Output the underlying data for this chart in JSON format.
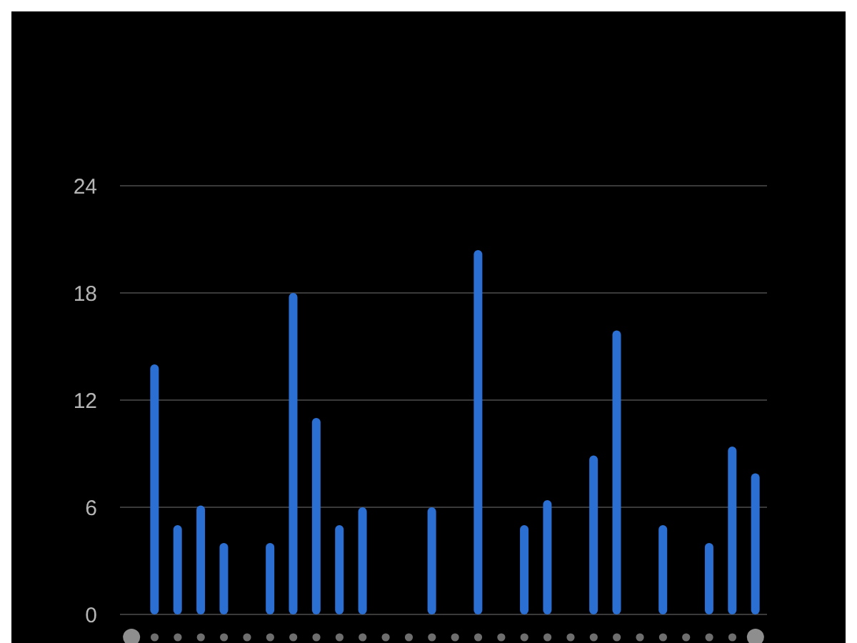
{
  "chart_data": {
    "type": "bar",
    "categories": [
      null,
      null,
      null,
      null,
      null,
      null,
      null,
      null,
      null,
      null,
      null,
      null,
      null,
      null,
      null,
      null,
      null,
      null,
      null,
      null,
      null,
      null,
      null,
      null,
      null,
      null,
      null,
      null
    ],
    "series": [
      {
        "color": "#2b6fd3",
        "values": [
          null,
          14,
          5,
          6.1,
          4,
          null,
          4,
          18,
          11,
          5,
          6,
          null,
          null,
          6,
          null,
          20.4,
          null,
          5,
          6.4,
          null,
          8.9,
          15.9,
          null,
          5,
          null,
          4,
          9.4,
          7.9
        ]
      }
    ],
    "ylim": [
      0,
      24
    ],
    "yticks": [
      0,
      6,
      12,
      18,
      24
    ],
    "grid": "y",
    "tick_labels": "y"
  }
}
